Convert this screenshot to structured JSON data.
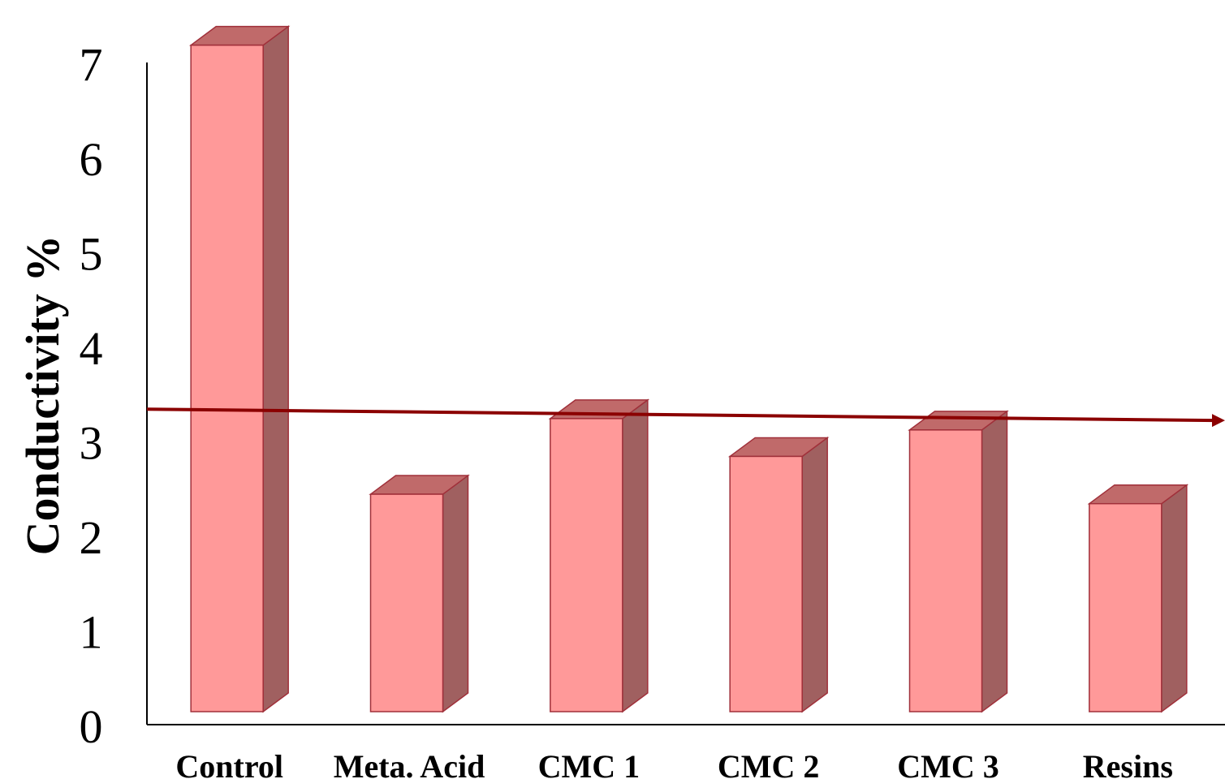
{
  "chart_data": {
    "type": "bar",
    "style": "3d-column",
    "categories": [
      "Control",
      "Meta. Acid",
      "CMC 1",
      "CMC 2",
      "CMC 3",
      "Resins"
    ],
    "values": [
      7.05,
      2.3,
      3.1,
      2.7,
      2.98,
      2.2
    ],
    "xlabel": "",
    "ylabel": "Conductivity %",
    "ylim": [
      0,
      7
    ],
    "yticks": [
      "0",
      "1",
      "2",
      "3",
      "4",
      "5",
      "6",
      "7"
    ],
    "grid": false,
    "legend": "none",
    "trendline": {
      "type": "linear",
      "start_value": 3.2,
      "end_value": 3.08,
      "color": "#8b0000"
    },
    "colors": {
      "bar_front": "#ff9999",
      "bar_top": "#c06a6a",
      "bar_side": "#a06060",
      "bar_stroke": "#a0303a"
    }
  }
}
